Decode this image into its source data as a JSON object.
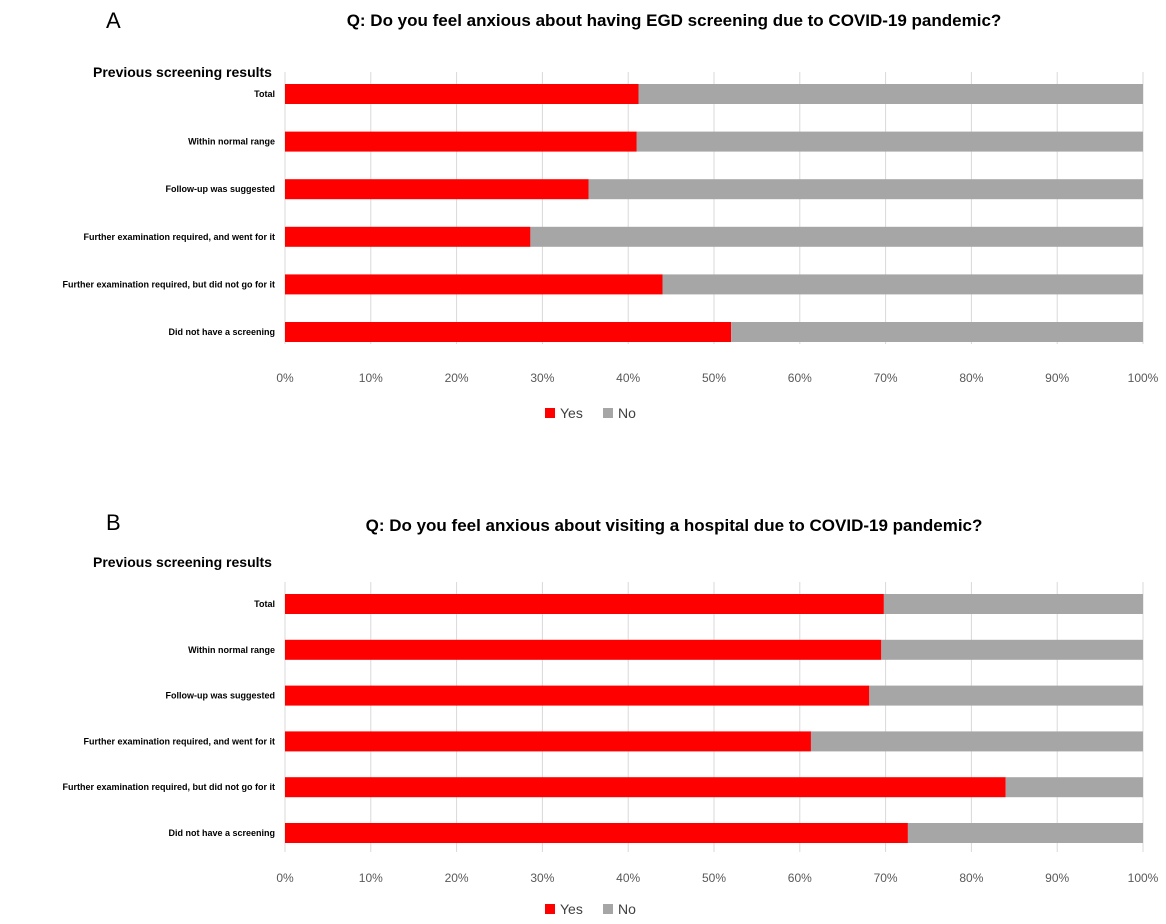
{
  "chart_data": [
    {
      "type": "bar",
      "orientation": "horizontal",
      "stacked": "percent",
      "panel_label": "A",
      "title": "Q: Do you feel anxious about having EGD screening due to COVID-19 pandemic?",
      "ylabel": "Previous screening results",
      "xlabel": "",
      "categories": [
        "Total",
        "Within normal range",
        "Follow-up was suggested",
        "Further examination required, and went for it",
        "Further examination required, but did not go for it",
        "Did not have a screening"
      ],
      "series": [
        {
          "name": "Yes",
          "color": "#ff0000",
          "values": [
            41.2,
            41.0,
            35.4,
            28.6,
            44.0,
            52.0
          ]
        },
        {
          "name": "No",
          "color": "#a6a6a6",
          "values": [
            58.8,
            59.0,
            64.6,
            71.4,
            56.0,
            48.0
          ]
        }
      ],
      "xlim": [
        0,
        100
      ],
      "xticks": [
        "0%",
        "10%",
        "20%",
        "30%",
        "40%",
        "50%",
        "60%",
        "70%",
        "80%",
        "90%",
        "100%"
      ],
      "grid": true,
      "legend": "bottom"
    },
    {
      "type": "bar",
      "orientation": "horizontal",
      "stacked": "percent",
      "panel_label": "B",
      "title": "Q: Do you feel anxious about visiting a hospital due to COVID-19 pandemic?",
      "ylabel": "Previous screening results",
      "xlabel": "",
      "categories": [
        "Total",
        "Within normal range",
        "Follow-up was suggested",
        "Further examination required, and went for it",
        "Further examination required, but did not go for it",
        "Did not have a screening"
      ],
      "series": [
        {
          "name": "Yes",
          "color": "#ff0000",
          "values": [
            69.8,
            69.5,
            68.1,
            61.3,
            84.0,
            72.6
          ]
        },
        {
          "name": "No",
          "color": "#a6a6a6",
          "values": [
            30.2,
            30.5,
            31.9,
            38.7,
            16.0,
            27.4
          ]
        }
      ],
      "xlim": [
        0,
        100
      ],
      "xticks": [
        "0%",
        "10%",
        "20%",
        "30%",
        "40%",
        "50%",
        "60%",
        "70%",
        "80%",
        "90%",
        "100%"
      ],
      "grid": true,
      "legend": "bottom"
    }
  ]
}
